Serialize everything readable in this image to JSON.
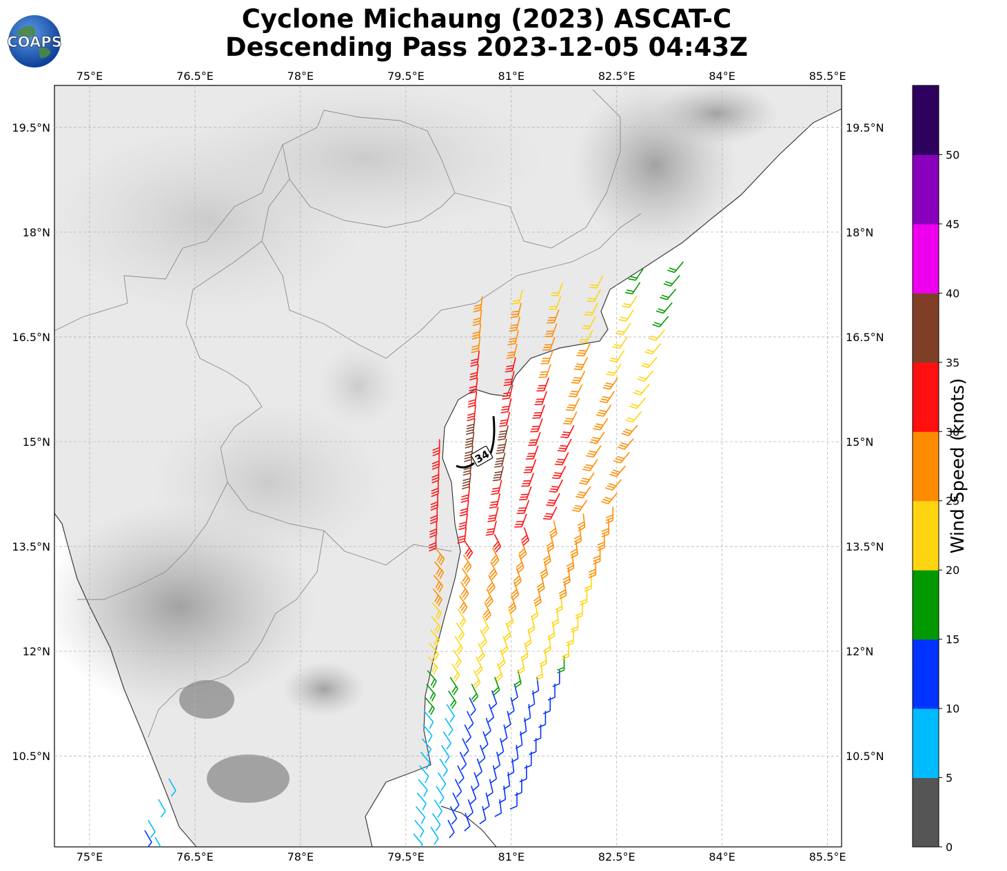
{
  "title": {
    "line1": "Cyclone Michaung (2023) ASCAT-C",
    "line2": "Descending Pass 2023-12-05 04:43Z"
  },
  "logo": {
    "text": "COAPS"
  },
  "map": {
    "lon_ticks": [
      "75°E",
      "76.5°E",
      "78°E",
      "79.5°E",
      "81°E",
      "82.5°E",
      "84°E",
      "85.5°E"
    ],
    "lat_ticks": [
      "19.5°N",
      "18°N",
      "16.5°N",
      "15°N",
      "13.5°N",
      "12°N",
      "10.5°N"
    ],
    "lon_values": [
      75,
      76.5,
      78,
      79.5,
      81,
      82.5,
      84,
      85.5
    ],
    "lat_values": [
      19.5,
      18,
      16.5,
      15,
      13.5,
      12,
      10.5
    ],
    "extent": {
      "lon_min": 74.5,
      "lon_max": 85.7,
      "lat_min": 9.2,
      "lat_max": 20.1
    },
    "contour_label": "34",
    "gridlines": true
  },
  "colorbar": {
    "label": "Wind Speed (knots)",
    "ticks": [
      "0",
      "5",
      "10",
      "15",
      "20",
      "25",
      "30",
      "35",
      "40",
      "45",
      "50"
    ],
    "colors": [
      "#555555",
      "#00bbff",
      "#0033ff",
      "#009900",
      "#ffd511",
      "#ff8c00",
      "#ff1010",
      "#7f3f27",
      "#ee00ee",
      "#8800bb",
      "#2e005e"
    ]
  }
}
